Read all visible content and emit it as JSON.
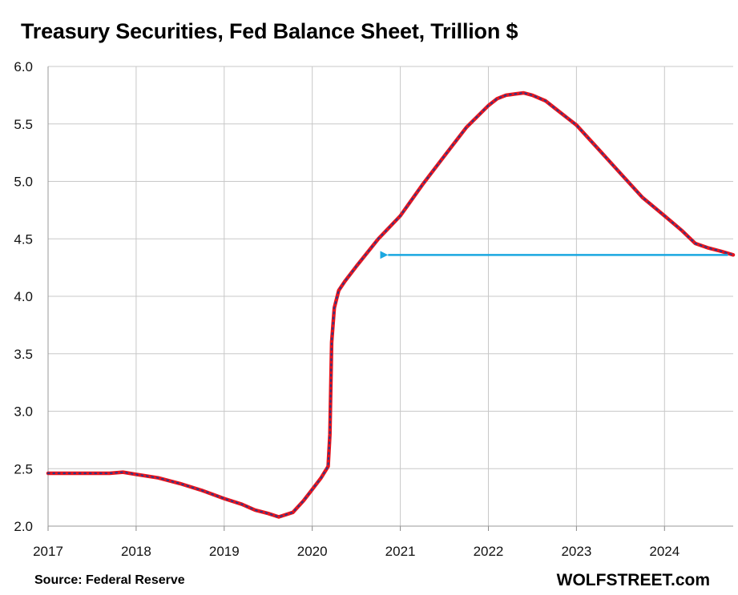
{
  "chart_data": {
    "type": "line",
    "title": "Treasury Securities, Fed Balance Sheet, Trillion $",
    "xlabel": "",
    "ylabel": "",
    "ylim": [
      2.0,
      6.0
    ],
    "xlim": [
      2017,
      2024.78
    ],
    "y_ticks": [
      "2.0",
      "2.5",
      "3.0",
      "3.5",
      "4.0",
      "4.5",
      "5.0",
      "5.5",
      "6.0"
    ],
    "x_ticks": [
      "2017",
      "2018",
      "2019",
      "2020",
      "2021",
      "2022",
      "2023",
      "2024"
    ],
    "grid": true,
    "legend": "none",
    "line_color": "#e8141e",
    "marker_color": "#2e3a87",
    "arrow_color": "#1aa7e0",
    "series": [
      {
        "x": [
          2017.0,
          2017.5,
          2017.7,
          2017.85,
          2018.0,
          2018.25,
          2018.5,
          2018.75,
          2019.0,
          2019.2,
          2019.35,
          2019.5,
          2019.62,
          2019.78,
          2019.9,
          2020.0,
          2020.1,
          2020.18,
          2020.2,
          2020.22,
          2020.25,
          2020.3,
          2020.37,
          2020.5,
          2020.75,
          2021.0,
          2021.25,
          2021.5,
          2021.75,
          2022.0,
          2022.1,
          2022.2,
          2022.3,
          2022.4,
          2022.5,
          2022.65,
          2022.75,
          2022.9,
          2023.0,
          2023.25,
          2023.5,
          2023.75,
          2024.0,
          2024.2,
          2024.35,
          2024.5,
          2024.65,
          2024.78
        ],
        "y": [
          2.46,
          2.46,
          2.46,
          2.47,
          2.45,
          2.42,
          2.37,
          2.31,
          2.24,
          2.19,
          2.14,
          2.11,
          2.08,
          2.12,
          2.22,
          2.32,
          2.42,
          2.52,
          2.8,
          3.6,
          3.9,
          4.05,
          4.13,
          4.26,
          4.5,
          4.7,
          4.97,
          5.22,
          5.47,
          5.66,
          5.72,
          5.75,
          5.76,
          5.77,
          5.75,
          5.7,
          5.64,
          5.55,
          5.49,
          5.28,
          5.07,
          4.86,
          4.7,
          4.57,
          4.46,
          4.42,
          4.39,
          4.36
        ]
      }
    ],
    "annotations": [
      {
        "type": "arrow",
        "from": [
          2024.72,
          4.36
        ],
        "to": [
          2020.77,
          4.36
        ]
      }
    ]
  },
  "footer": {
    "source": "Source: Federal Reserve",
    "brand": "WOLFSTREET.com"
  }
}
